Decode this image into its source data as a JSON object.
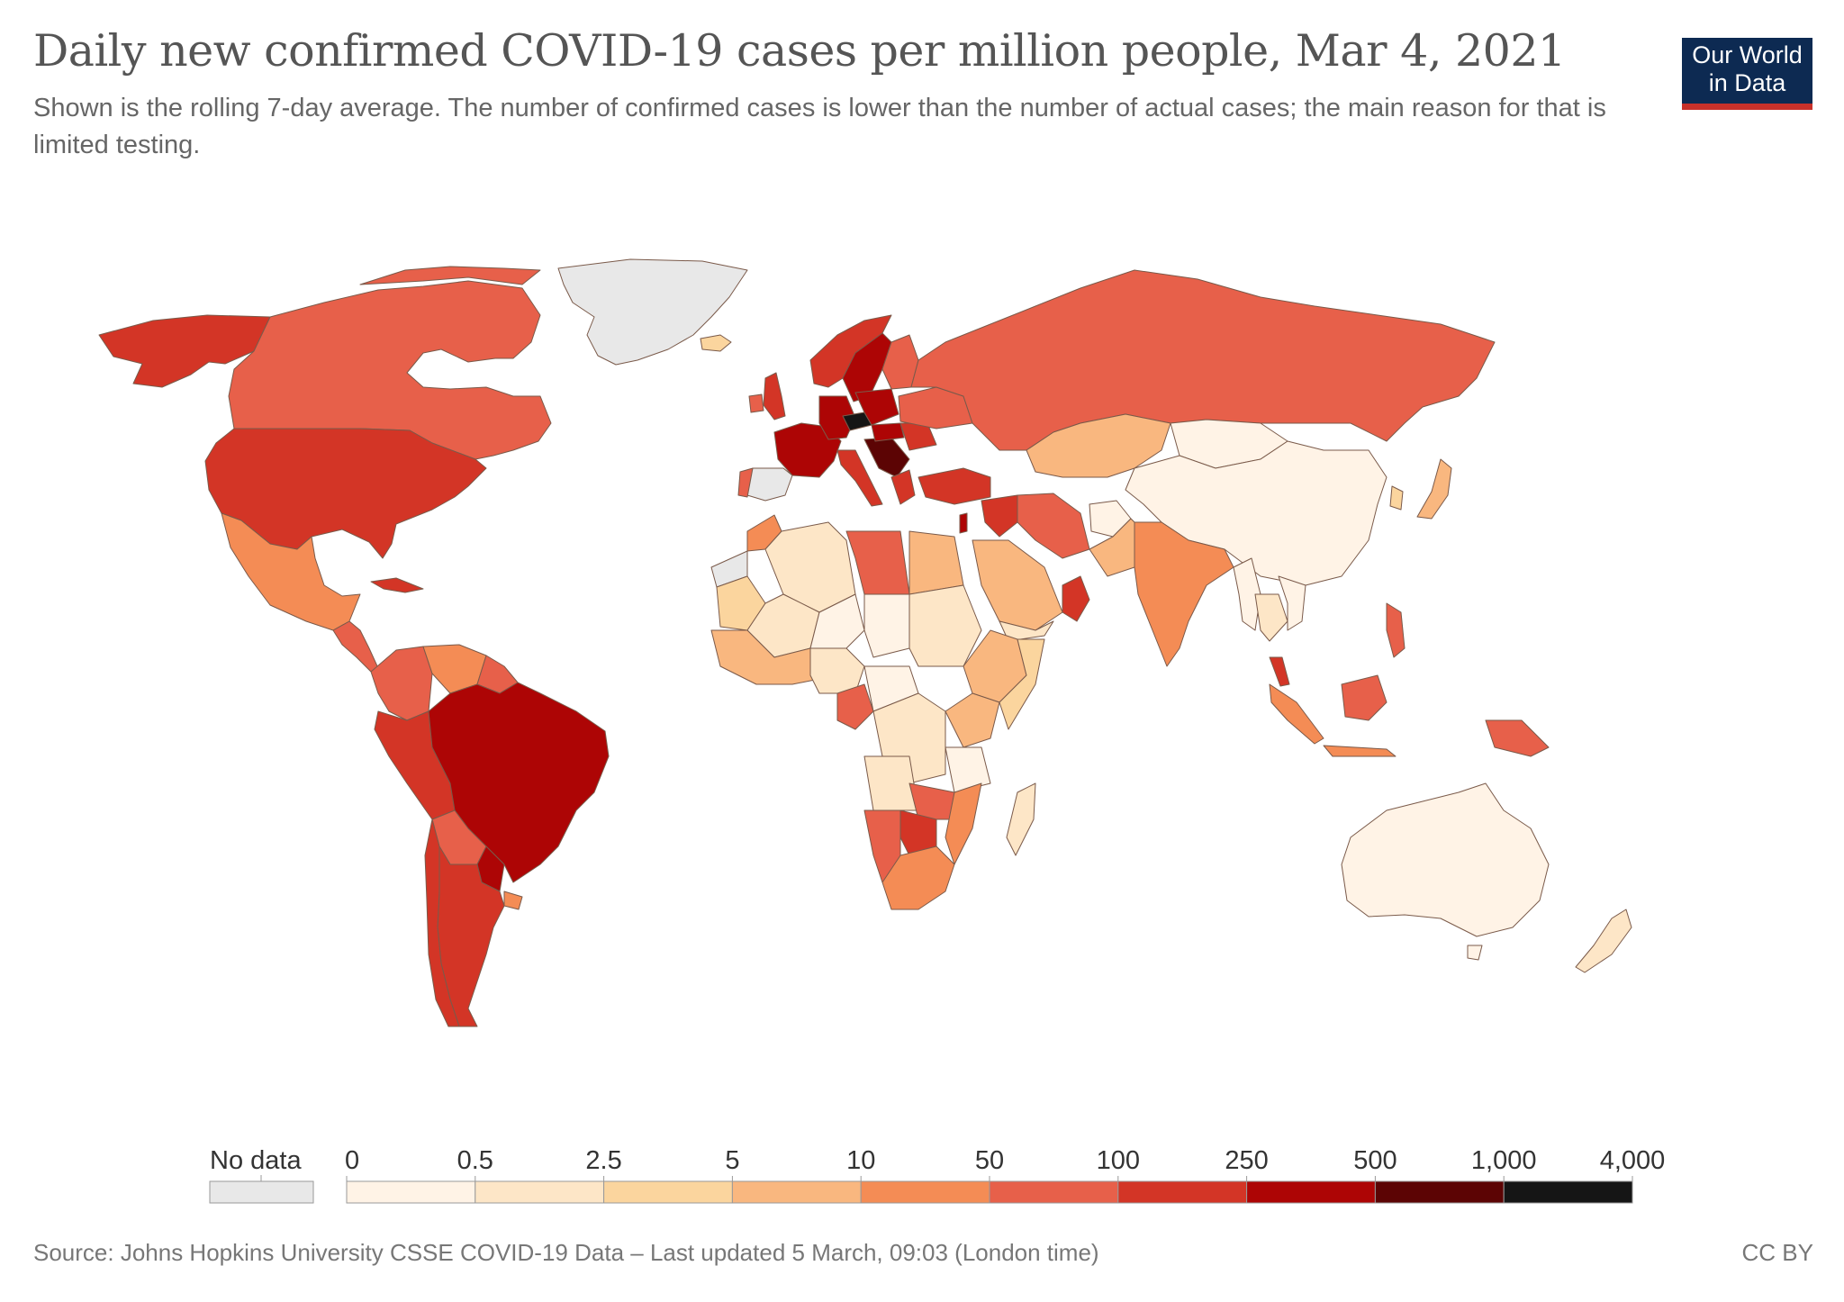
{
  "header": {
    "title": "Daily new confirmed COVID-19 cases per million people, Mar 4, 2021",
    "subtitle": "Shown is the rolling 7-day average. The number of confirmed cases is lower than the number of actual cases; the main reason for that is limited testing."
  },
  "logo": {
    "line1": "Our World",
    "line2": "in Data"
  },
  "legend": {
    "no_data_label": "No data",
    "no_data_color": "#e8e8e8",
    "ticks": [
      "0",
      "0.5",
      "2.5",
      "5",
      "10",
      "50",
      "100",
      "250",
      "500",
      "1,000",
      "4,000"
    ],
    "colors": [
      "#fff3e6",
      "#fde6c7",
      "#fbd59e",
      "#f9b77f",
      "#f48c55",
      "#e7604a",
      "#d33526",
      "#ad0505",
      "#5c0404",
      "#151515"
    ]
  },
  "footer": {
    "source": "Source: Johns Hopkins University CSSE COVID-19 Data – Last updated 5 March, 09:03 (London time)",
    "license": "CC BY"
  }
}
